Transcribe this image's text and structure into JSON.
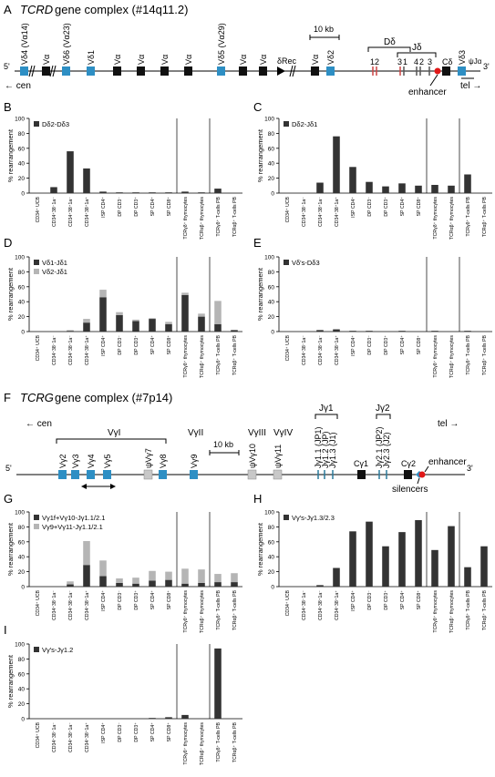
{
  "figure": {
    "panel_a": {
      "letter": "A",
      "title_gene": "TCRD",
      "title_rest": " gene complex (#14q11.2)"
    },
    "panel_f": {
      "letter": "F",
      "title_gene": "TCRG",
      "title_rest": " gene complex (#7p14)"
    }
  },
  "map_a": {
    "five": "5'",
    "three": "3'",
    "genes": [
      "Vδ4 (Vα14)",
      "Vα",
      "Vδ6 (Vα23)",
      "Vδ1",
      "Vα",
      "Vα",
      "Vα",
      "Vα",
      "Vδ5 (Vα29)",
      "Vα",
      "Vα",
      "Vα",
      "Vδ2",
      "Vδ3",
      "ψJα"
    ],
    "scale": "10 kb",
    "drec": "δRec",
    "d_group": "Dδ",
    "j_group": "Jδ",
    "dj_numbers": [
      "1",
      "2",
      "3",
      "1",
      "4",
      "2",
      "3"
    ],
    "cd": "Cδ",
    "cα": "Cα",
    "enhancer": "enhancer",
    "cen": "← cen",
    "tel": "tel →"
  },
  "map_f": {
    "five": "5'",
    "three": "3'",
    "cen": "← cen",
    "tel": "tel →",
    "v1_group": "VγI",
    "v2": "VγII",
    "v3": "VγIII",
    "v4": "VγIV",
    "genes": [
      "Vγ2",
      "Vγ3",
      "Vγ4",
      "Vγ5",
      "ψVγ7",
      "Vγ8",
      "Vγ9",
      "ψVγ10",
      "ψVγ11"
    ],
    "scale": "10 kb",
    "jg1": "Jγ1",
    "jg2": "Jγ2",
    "j1_labels": [
      "Jγ1.1 (JP1)",
      "Jγ1.2 (JP)",
      "Jγ1.3 (J1)"
    ],
    "j2_labels": [
      "Jγ2.1 (JP2)",
      "Jγ2.3 (J2)"
    ],
    "cg1": "Cγ1",
    "cg2": "Cγ2",
    "enhancer": "enhancer",
    "silencers": "silencers"
  },
  "axis_ylabel": "% rearrangement",
  "x_categories": [
    "CD34⁺ UCB",
    "CD34⁺38⁻1a⁻",
    "CD34⁺38⁺1a⁻",
    "CD34⁺38⁺1a⁺",
    "ISP CD4⁺",
    "DP CD3⁻",
    "DP CD3⁺",
    "SP CD4⁺",
    "SP CD8⁺",
    "TCRγδ⁺ thymocytes",
    "TCRαβ⁺ thymocytes",
    "TCRγδ⁺ T-cells PB",
    "TCRαβ⁺ T-cells PB"
  ],
  "chart_data": [
    {
      "panel": "B",
      "type": "bar",
      "ylim": [
        0,
        100
      ],
      "yticks": [
        0,
        20,
        40,
        60,
        80,
        100
      ],
      "ylabel": "% rearrangement",
      "series": [
        {
          "name": "Dδ2-Dδ3",
          "color": "#333333",
          "values": [
            0,
            8,
            56,
            33,
            2,
            1,
            1,
            1,
            1,
            2,
            1,
            6,
            0
          ]
        }
      ]
    },
    {
      "panel": "C",
      "type": "bar",
      "ylim": [
        0,
        100
      ],
      "yticks": [
        0,
        20,
        40,
        60,
        80,
        100
      ],
      "ylabel": "% rearrangement",
      "series": [
        {
          "name": "Dδ2-Jδ1",
          "color": "#333333",
          "values": [
            0,
            0,
            14,
            76,
            35,
            15,
            9,
            13,
            10,
            11,
            10,
            25,
            0
          ]
        }
      ]
    },
    {
      "panel": "D",
      "type": "bar",
      "stacked": true,
      "ylim": [
        0,
        100
      ],
      "yticks": [
        0,
        20,
        40,
        60,
        80,
        100
      ],
      "ylabel": "% rearrangement",
      "series": [
        {
          "name": "Vδ1-Jδ1",
          "color": "#333333",
          "values": [
            0,
            0,
            1,
            12,
            46,
            22,
            14,
            17,
            10,
            49,
            20,
            10,
            2
          ]
        },
        {
          "name": "Vδ2-Jδ1",
          "color": "#b5b5b5",
          "values": [
            0,
            0,
            1,
            5,
            10,
            4,
            2,
            1,
            3,
            3,
            4,
            31,
            0
          ]
        }
      ]
    },
    {
      "panel": "E",
      "type": "bar",
      "ylim": [
        0,
        100
      ],
      "yticks": [
        0,
        20,
        40,
        60,
        80,
        100
      ],
      "ylabel": "% rearrangement",
      "series": [
        {
          "name": "Vδ's-Dδ3",
          "color": "#333333",
          "values": [
            0,
            0,
            2,
            3,
            1,
            1,
            0,
            1,
            0,
            1,
            0,
            1,
            0
          ]
        }
      ]
    },
    {
      "panel": "G",
      "type": "bar",
      "stacked": true,
      "ylim": [
        0,
        100
      ],
      "yticks": [
        0,
        20,
        40,
        60,
        80,
        100
      ],
      "ylabel": "% rearrangement",
      "series": [
        {
          "name": "Vγ1f+Vγ10-Jγ1.1/2.1",
          "color": "#333333",
          "values": [
            0,
            0,
            3,
            29,
            14,
            5,
            4,
            8,
            9,
            4,
            5,
            6,
            6
          ]
        },
        {
          "name": "Vγ9+Vγ11-Jγ1.1/2.1",
          "color": "#b5b5b5",
          "values": [
            0,
            0,
            4,
            32,
            21,
            6,
            8,
            13,
            11,
            20,
            18,
            11,
            12
          ]
        }
      ]
    },
    {
      "panel": "H",
      "type": "bar",
      "ylim": [
        0,
        100
      ],
      "yticks": [
        0,
        20,
        40,
        60,
        80,
        100
      ],
      "ylabel": "% rearrangement",
      "series": [
        {
          "name": "Vγ's-Jγ1.3/2.3",
          "color": "#333333",
          "values": [
            0,
            0,
            2,
            25,
            74,
            87,
            54,
            73,
            89,
            49,
            81,
            26,
            54
          ]
        }
      ]
    },
    {
      "panel": "I",
      "type": "bar",
      "ylim": [
        0,
        100
      ],
      "yticks": [
        0,
        20,
        40,
        60,
        80,
        100
      ],
      "ylabel": "% rearrangement",
      "series": [
        {
          "name": "Vγ's-Jγ1.2",
          "color": "#333333",
          "values": [
            0,
            0,
            0,
            0,
            0,
            0,
            0,
            1,
            2,
            5,
            0,
            94,
            0
          ]
        }
      ]
    }
  ]
}
